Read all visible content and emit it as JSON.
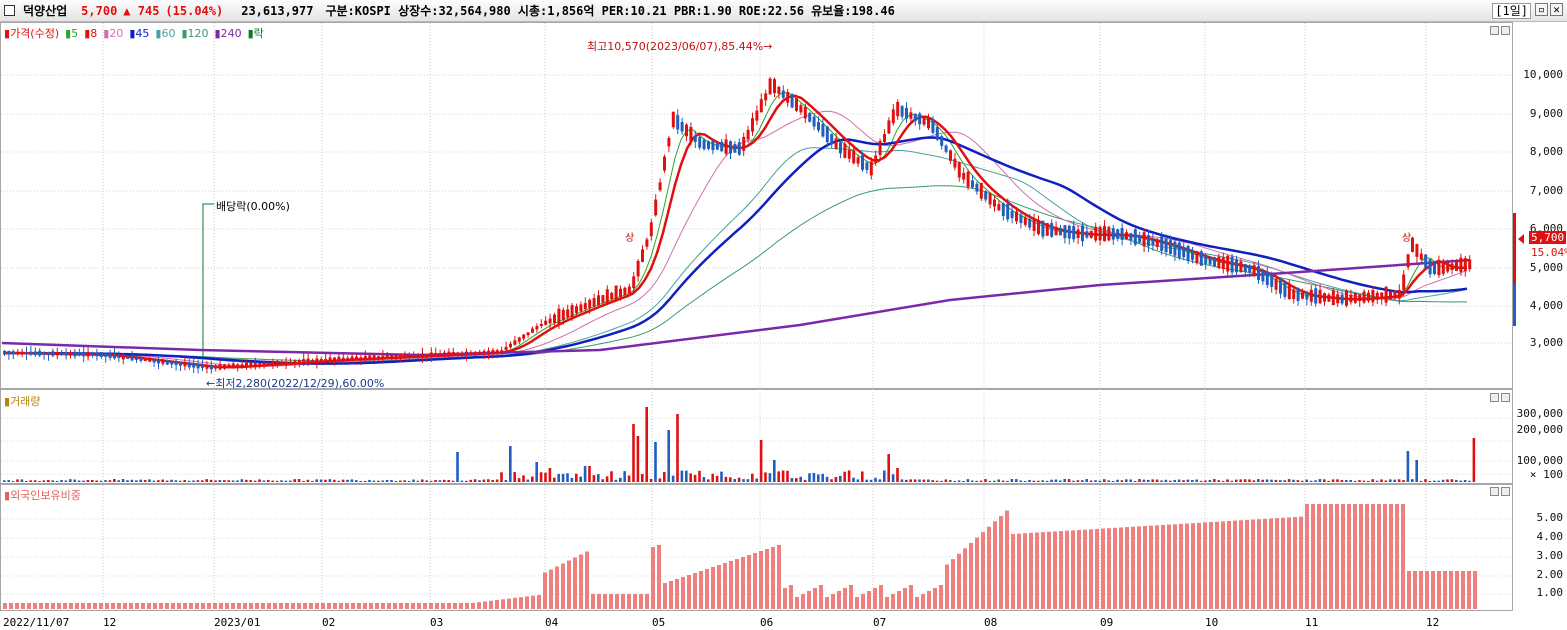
{
  "header": {
    "stock_name": "덕양산업",
    "price": "5,700",
    "change": "▲ 745",
    "change_pct": "(15.04%)",
    "volume": "23,613,977",
    "info": "구분:KOSPI 상장수:32,564,980 시총:1,856억 PER:10.21 PBR:1.90 ROE:22.56 유보율:198.46",
    "period": "[1일]"
  },
  "price_pane": {
    "legend": {
      "title": "가격(수정)",
      "ma5": "5",
      "ma8": "8",
      "ma20": "20",
      "ma45": "45",
      "ma60": "60",
      "ma120": "120",
      "ma240": "240",
      "ex": "락"
    },
    "ticks": [
      "10,000",
      "9,000",
      "8,000",
      "7,000",
      "6,000",
      "5,000",
      "4,000",
      "3,000"
    ],
    "high_annotation": "최고10,570(2023/06/07),85.44%→",
    "low_annotation": "←최저2,280(2022/12/29),60.00%",
    "dividend_annotation": "배당락(0.00%)",
    "surge_marker_1": "상",
    "surge_marker_2": "상",
    "current_price_tag": "5,700",
    "current_pct_tag": "15.04%"
  },
  "volume_pane": {
    "legend": "거래량",
    "ticks": [
      "300,000",
      "200,000",
      "100,000",
      "× 100"
    ]
  },
  "foreign_pane": {
    "legend": "외국인보유비중",
    "ticks": [
      "5.00",
      "4.00",
      "3.00",
      "2.00",
      "1.00"
    ]
  },
  "x_axis": [
    "2022/11/07",
    "12",
    "2023/01",
    "02",
    "03",
    "04",
    "05",
    "06",
    "07",
    "08",
    "09",
    "10",
    "11",
    "12"
  ],
  "colors": {
    "up": "#e01010",
    "down": "#1f5fbf",
    "ma5": "#2aa52a",
    "ma8": "#e01010",
    "ma20": "#d070b0",
    "ma45": "#1020c0",
    "ma60": "#4aa0a0",
    "ma120": "#3a9a6a",
    "ma240": "#7a2aa8",
    "foreign": "#f08080"
  }
}
